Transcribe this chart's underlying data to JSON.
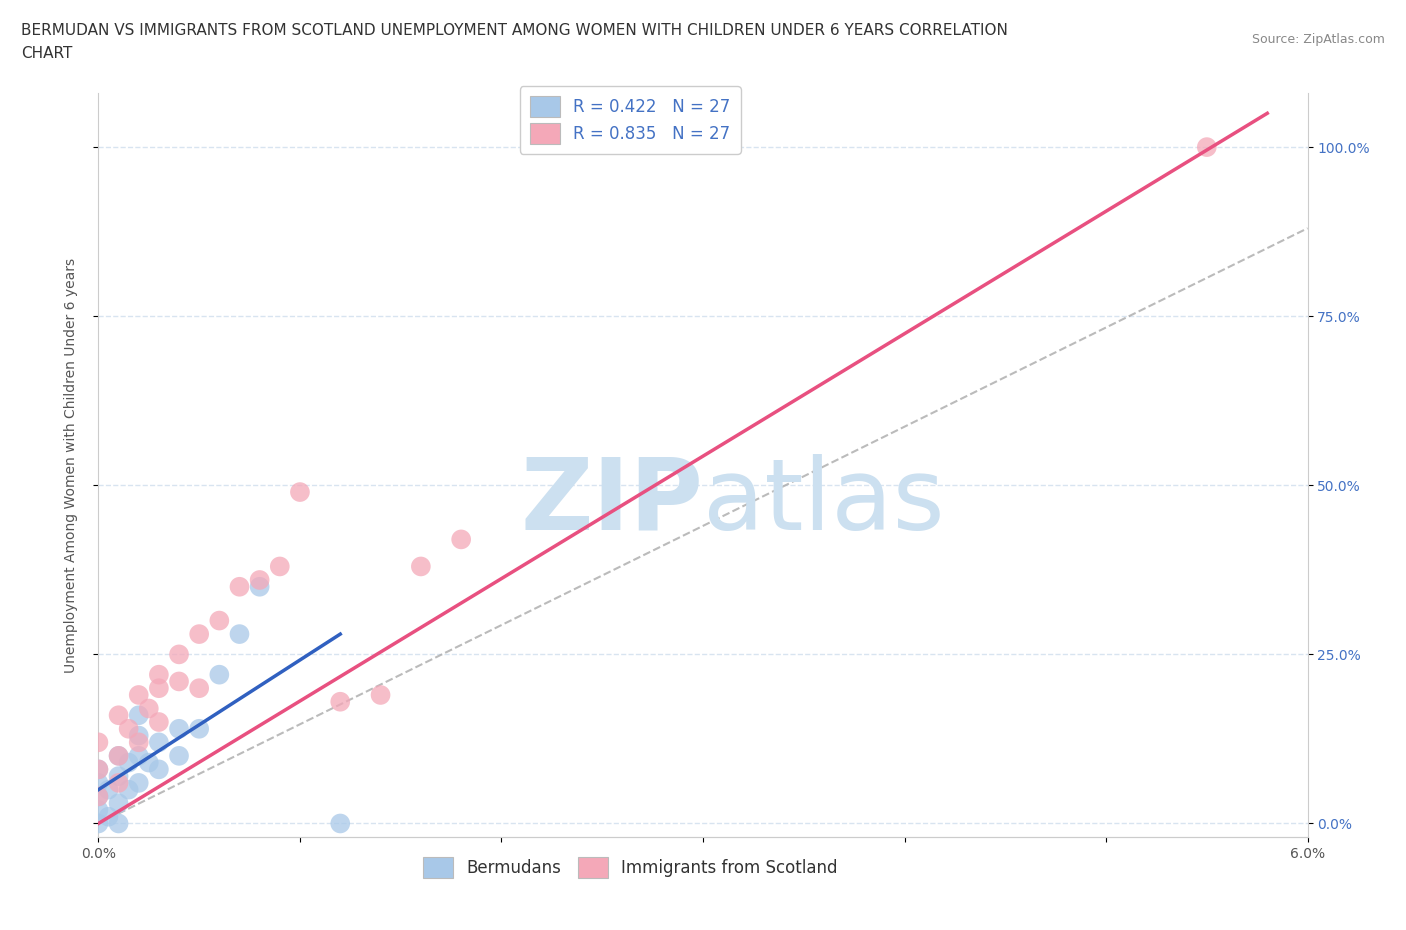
{
  "title_line1": "BERMUDAN VS IMMIGRANTS FROM SCOTLAND UNEMPLOYMENT AMONG WOMEN WITH CHILDREN UNDER 6 YEARS CORRELATION",
  "title_line2": "CHART",
  "source": "Source: ZipAtlas.com",
  "ylabel": "Unemployment Among Women with Children Under 6 years",
  "ytick_labels": [
    "0.0%",
    "25.0%",
    "50.0%",
    "75.0%",
    "100.0%"
  ],
  "ytick_values": [
    0.0,
    0.25,
    0.5,
    0.75,
    1.0
  ],
  "xlim": [
    0.0,
    0.06
  ],
  "ylim": [
    -0.02,
    1.08
  ],
  "bermuda_color": "#a8c8e8",
  "scotland_color": "#f4a8b8",
  "bermuda_line_color": "#3060c0",
  "scotland_line_color": "#e85080",
  "watermark_color": "#cce0f0",
  "background_color": "#ffffff",
  "grid_color": "#d8e4f0",
  "bermuda_points_x": [
    0.0,
    0.0,
    0.0,
    0.0,
    0.0,
    0.0005,
    0.0005,
    0.001,
    0.001,
    0.001,
    0.001,
    0.0015,
    0.0015,
    0.002,
    0.002,
    0.002,
    0.002,
    0.0025,
    0.003,
    0.003,
    0.004,
    0.004,
    0.005,
    0.006,
    0.007,
    0.008,
    0.012
  ],
  "bermuda_points_y": [
    0.0,
    0.02,
    0.04,
    0.06,
    0.08,
    0.01,
    0.05,
    0.0,
    0.03,
    0.07,
    0.1,
    0.05,
    0.09,
    0.06,
    0.1,
    0.13,
    0.16,
    0.09,
    0.08,
    0.12,
    0.1,
    0.14,
    0.14,
    0.22,
    0.28,
    0.35,
    0.0
  ],
  "scotland_points_x": [
    0.0,
    0.0,
    0.0,
    0.001,
    0.001,
    0.001,
    0.0015,
    0.002,
    0.002,
    0.0025,
    0.003,
    0.003,
    0.003,
    0.004,
    0.004,
    0.005,
    0.005,
    0.006,
    0.007,
    0.008,
    0.009,
    0.01,
    0.012,
    0.014,
    0.016,
    0.018,
    0.055
  ],
  "scotland_points_y": [
    0.04,
    0.08,
    0.12,
    0.06,
    0.1,
    0.16,
    0.14,
    0.12,
    0.19,
    0.17,
    0.15,
    0.2,
    0.22,
    0.21,
    0.25,
    0.2,
    0.28,
    0.3,
    0.35,
    0.36,
    0.38,
    0.49,
    0.18,
    0.19,
    0.38,
    0.42,
    1.0
  ],
  "bermuda_trend_x": [
    0.0,
    0.012
  ],
  "bermuda_trend_y": [
    0.05,
    0.28
  ],
  "scotland_trend_x": [
    0.0,
    0.058
  ],
  "scotland_trend_y": [
    0.0,
    1.05
  ],
  "diag_trend_x": [
    0.0,
    0.06
  ],
  "diag_trend_y": [
    0.0,
    0.88
  ],
  "title_fontsize": 11,
  "source_fontsize": 9,
  "label_fontsize": 10,
  "tick_fontsize": 10,
  "legend_fontsize": 12
}
